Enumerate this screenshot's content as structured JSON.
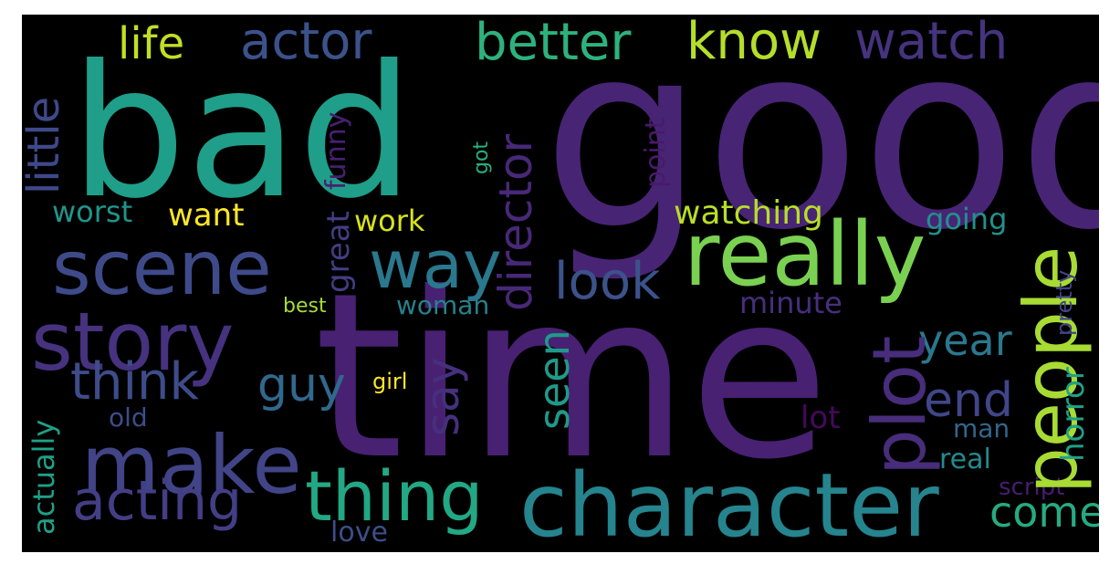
{
  "words": [
    {
      "text": "bad",
      "color": "#1f9e89",
      "vertical": false
    },
    {
      "text": "good",
      "color": "#482475",
      "vertical": false
    },
    {
      "text": "time",
      "color": "#482173",
      "vertical": false
    },
    {
      "text": "character",
      "color": "#25848e",
      "vertical": false
    },
    {
      "text": "really",
      "color": "#7ad151",
      "vertical": false
    },
    {
      "text": "people",
      "color": "#a8db34",
      "vertical": true
    },
    {
      "text": "scene",
      "color": "#3e4a89",
      "vertical": false
    },
    {
      "text": "story",
      "color": "#46327e",
      "vertical": false
    },
    {
      "text": "make",
      "color": "#414487",
      "vertical": false
    },
    {
      "text": "thing",
      "color": "#22a884",
      "vertical": false
    },
    {
      "text": "plot",
      "color": "#472d7b",
      "vertical": true
    },
    {
      "text": "way",
      "color": "#2a788e",
      "vertical": false
    },
    {
      "text": "director",
      "color": "#482878",
      "vertical": true
    },
    {
      "text": "actor",
      "color": "#3b528b",
      "vertical": false
    },
    {
      "text": "better",
      "color": "#2db27d",
      "vertical": false
    },
    {
      "text": "know",
      "color": "#b5de2b",
      "vertical": false
    },
    {
      "text": "watch",
      "color": "#46337e",
      "vertical": false
    },
    {
      "text": "life",
      "color": "#c2df23",
      "vertical": false
    },
    {
      "text": "little",
      "color": "#3e4989",
      "vertical": true
    },
    {
      "text": "think",
      "color": "#3e4c8a",
      "vertical": false
    },
    {
      "text": "guy",
      "color": "#31688e",
      "vertical": false
    },
    {
      "text": "acting",
      "color": "#433e85",
      "vertical": false
    },
    {
      "text": "look",
      "color": "#3b528b",
      "vertical": false
    },
    {
      "text": "seen",
      "color": "#1f9a8a",
      "vertical": true
    },
    {
      "text": "say",
      "color": "#46307e",
      "vertical": true
    },
    {
      "text": "end",
      "color": "#404688",
      "vertical": false
    },
    {
      "text": "come",
      "color": "#25ab82",
      "vertical": false
    },
    {
      "text": "year",
      "color": "#2a788e",
      "vertical": false
    },
    {
      "text": "watching",
      "color": "#b8de29",
      "vertical": false
    },
    {
      "text": "going",
      "color": "#21918c",
      "vertical": false
    },
    {
      "text": "minute",
      "color": "#472f7d",
      "vertical": false
    },
    {
      "text": "horror",
      "color": "#1fa187",
      "vertical": true
    },
    {
      "text": "pretty",
      "color": "#404588",
      "vertical": true
    },
    {
      "text": "man",
      "color": "#31678e",
      "vertical": false
    },
    {
      "text": "real",
      "color": "#238a8d",
      "vertical": false
    },
    {
      "text": "script",
      "color": "#481c6e",
      "vertical": false
    },
    {
      "text": "lot",
      "color": "#46085c",
      "vertical": false
    },
    {
      "text": "great",
      "color": "#433d84",
      "vertical": true
    },
    {
      "text": "funny",
      "color": "#482071",
      "vertical": true
    },
    {
      "text": "point",
      "color": "#481a6c",
      "vertical": true
    },
    {
      "text": "got",
      "color": "#29af7f",
      "vertical": true
    },
    {
      "text": "want",
      "color": "#fde725",
      "vertical": false
    },
    {
      "text": "work",
      "color": "#d8e219",
      "vertical": false
    },
    {
      "text": "worst",
      "color": "#1f958b",
      "vertical": false
    },
    {
      "text": "woman",
      "color": "#26828e",
      "vertical": false
    },
    {
      "text": "best",
      "color": "#a5db36",
      "vertical": false
    },
    {
      "text": "girl",
      "color": "#fde725",
      "vertical": false
    },
    {
      "text": "old",
      "color": "#3d4d8a",
      "vertical": false
    },
    {
      "text": "actually",
      "color": "#1fa088",
      "vertical": true
    },
    {
      "text": "love",
      "color": "#3d4e8a",
      "vertical": false
    }
  ]
}
